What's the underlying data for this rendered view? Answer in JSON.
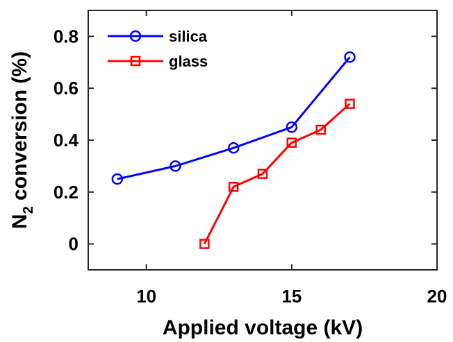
{
  "chart_data": {
    "type": "line",
    "title": "",
    "xlabel": "Applied voltage (kV)",
    "ylabel_main": "N",
    "ylabel_sub": "2",
    "ylabel_rest": " conversion (%)",
    "xlim": [
      8,
      20
    ],
    "ylim": [
      -0.1,
      0.9
    ],
    "xticks": [
      10,
      15,
      20
    ],
    "xtick_labels": [
      "10",
      "15",
      "20"
    ],
    "yticks": [
      0,
      0.2,
      0.4,
      0.6,
      0.8
    ],
    "ytick_labels": [
      "0",
      "0.2",
      "0.4",
      "0.6",
      "0.8"
    ],
    "grid": false,
    "legend_position": "top-left",
    "series": [
      {
        "name": "silica",
        "color": "#0000ff",
        "marker": "circle",
        "x": [
          9,
          11,
          13,
          15,
          17
        ],
        "y": [
          0.25,
          0.3,
          0.37,
          0.45,
          0.72
        ]
      },
      {
        "name": "glass",
        "color": "#ff0000",
        "marker": "square",
        "x": [
          12,
          13,
          14,
          15,
          16,
          17
        ],
        "y": [
          0.0,
          0.22,
          0.27,
          0.39,
          0.44,
          0.54
        ]
      }
    ]
  }
}
